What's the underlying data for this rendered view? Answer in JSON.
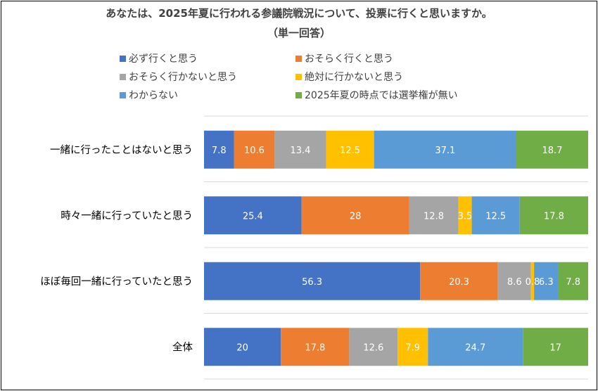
{
  "chart_data": {
    "type": "bar",
    "orientation": "horizontal",
    "stacked": "percent",
    "title": "あなたは、2025年夏に行われる参議院戦況について、投票に行くと思いますか。",
    "subtitle": "（単一回答）",
    "categories": [
      "一緒に行ったことはないと思う",
      "時々一緒に行っていたと思う",
      "ほぼ毎回一緒に行っていたと思う",
      "全体"
    ],
    "series": [
      {
        "name": "必ず行くと思う",
        "color": "#4472C4",
        "values": [
          7.8,
          25.4,
          56.3,
          20
        ]
      },
      {
        "name": "おそらく行くと思う",
        "color": "#ED7D31",
        "values": [
          10.6,
          28,
          20.3,
          17.8
        ]
      },
      {
        "name": "おそらく行かないと思う",
        "color": "#A5A5A5",
        "values": [
          13.4,
          12.8,
          8.6,
          12.6
        ]
      },
      {
        "name": "絶対に行かないと思う",
        "color": "#FFC000",
        "values": [
          12.5,
          3.5,
          0.8,
          7.9
        ]
      },
      {
        "name": "わからない",
        "color": "#5B9BD5",
        "values": [
          37.1,
          12.5,
          6.3,
          24.7
        ]
      },
      {
        "name": "2025年夏の時点では選挙権が無い",
        "color": "#70AD47",
        "values": [
          18.7,
          17.8,
          7.8,
          17
        ]
      }
    ],
    "xlim": [
      0,
      100
    ],
    "grid": true,
    "legend": "top"
  }
}
